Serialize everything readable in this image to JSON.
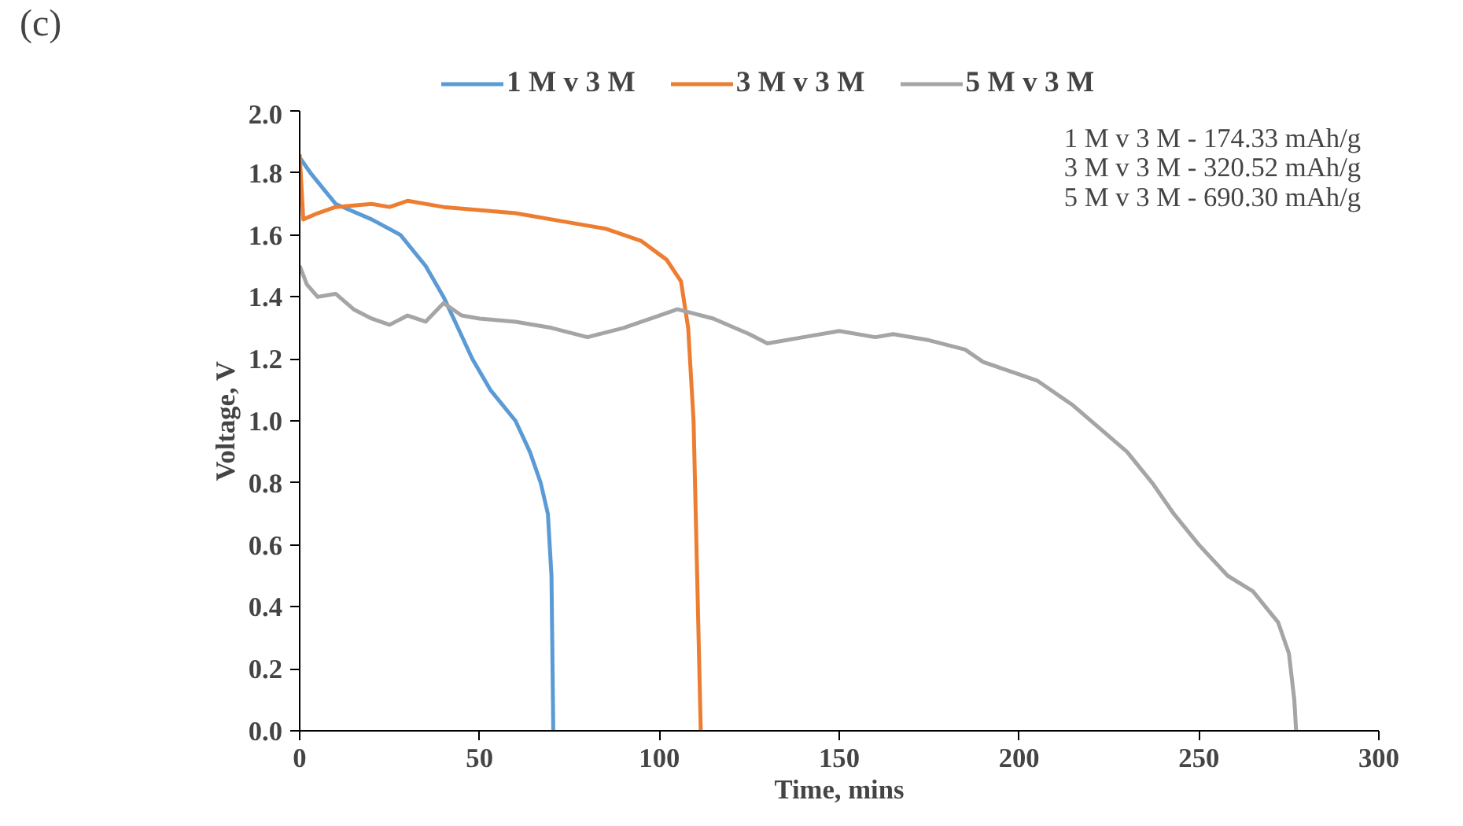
{
  "chart_data": {
    "type": "line",
    "title": "(c)",
    "xlabel": "Time, mins",
    "ylabel": "Voltage, V",
    "xlim": [
      0,
      300
    ],
    "ylim": [
      0,
      2.0
    ],
    "xticks": [
      0,
      50,
      100,
      150,
      200,
      250,
      300
    ],
    "yticks": [
      {
        "value": 0,
        "label": "0.0"
      },
      {
        "value": 0.2,
        "label": "0.2"
      },
      {
        "value": 0.4,
        "label": "0.4"
      },
      {
        "value": 0.6,
        "label": "0.6"
      },
      {
        "value": 0.8,
        "label": "0.8"
      },
      {
        "value": 1.0,
        "label": "1.0"
      },
      {
        "value": 1.2,
        "label": "1.2"
      },
      {
        "value": 1.4,
        "label": "1.4"
      },
      {
        "value": 1.6,
        "label": "1.6"
      },
      {
        "value": 1.8,
        "label": "1.8"
      },
      {
        "value": 2.0,
        "label": "2.0"
      }
    ],
    "grid": false,
    "legend": "top",
    "marker": "none",
    "line_style": "solid",
    "annotations": [
      "1 M v 3 M - 174.33 mAh/g",
      "3 M v 3 M - 320.52 mAh/g",
      "5 M v 3 M - 690.30 mAh/g"
    ],
    "series": [
      {
        "name": "1 M v 3 M",
        "color": "#5b9bd5",
        "x": [
          0,
          3,
          10,
          20,
          28,
          35,
          40,
          44,
          48,
          53,
          60,
          64,
          67,
          69,
          70,
          70.5
        ],
        "values": [
          1.85,
          1.8,
          1.7,
          1.65,
          1.6,
          1.5,
          1.4,
          1.3,
          1.2,
          1.1,
          1.0,
          0.9,
          0.8,
          0.7,
          0.5,
          0
        ]
      },
      {
        "name": "3 M v 3 M",
        "color": "#ed7d31",
        "x": [
          0,
          1,
          5,
          10,
          20,
          25,
          30,
          40,
          60,
          75,
          85,
          95,
          102,
          106,
          108,
          109.5,
          110.5,
          111.5
        ],
        "values": [
          1.86,
          1.65,
          1.67,
          1.69,
          1.7,
          1.69,
          1.71,
          1.69,
          1.67,
          1.64,
          1.62,
          1.58,
          1.52,
          1.45,
          1.3,
          1.0,
          0.5,
          0
        ]
      },
      {
        "name": "5 M v 3 M",
        "color": "#a5a5a5",
        "x": [
          0,
          2,
          5,
          10,
          15,
          20,
          25,
          30,
          35,
          40,
          45,
          50,
          60,
          70,
          80,
          90,
          100,
          105,
          115,
          125,
          130,
          140,
          150,
          160,
          165,
          175,
          185,
          190,
          200,
          205,
          215,
          222,
          230,
          237,
          243,
          250,
          258,
          265,
          272,
          275,
          276.5,
          277
        ],
        "values": [
          1.5,
          1.44,
          1.4,
          1.41,
          1.36,
          1.33,
          1.31,
          1.34,
          1.32,
          1.38,
          1.34,
          1.33,
          1.32,
          1.3,
          1.27,
          1.3,
          1.34,
          1.36,
          1.33,
          1.28,
          1.25,
          1.27,
          1.29,
          1.27,
          1.28,
          1.26,
          1.23,
          1.19,
          1.15,
          1.13,
          1.05,
          0.98,
          0.9,
          0.8,
          0.7,
          0.6,
          0.5,
          0.45,
          0.35,
          0.25,
          0.1,
          0
        ]
      }
    ]
  }
}
